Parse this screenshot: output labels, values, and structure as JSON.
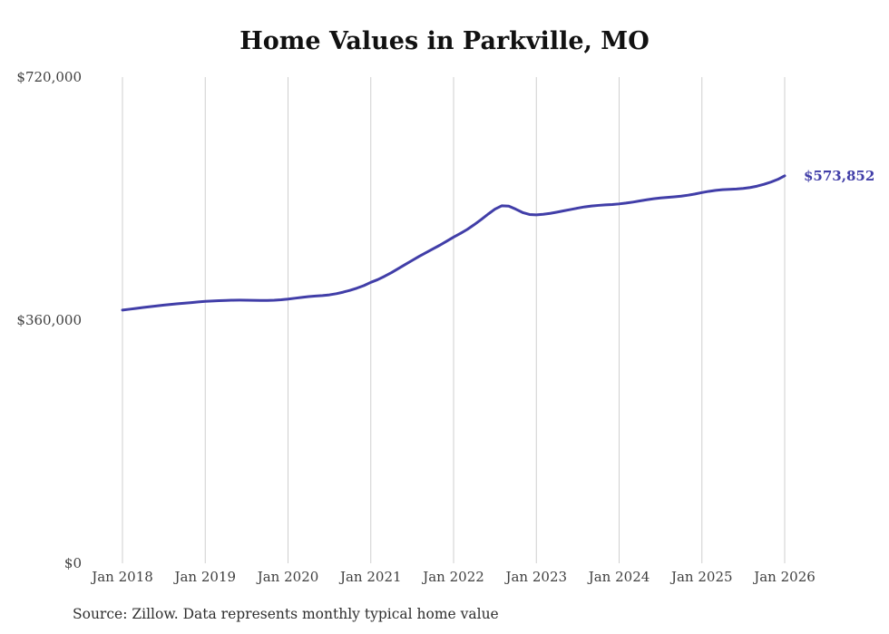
{
  "title": "Home Values in Parkville, MO",
  "source_note": "Source: Zillow. Data represents monthly typical home value",
  "colors": {
    "line": "#413ea8",
    "grid": "#cfcfcf",
    "axis_text": "#3f3f3f",
    "title_text": "#111111",
    "background": "#ffffff"
  },
  "chart_data": {
    "type": "line",
    "title": "Home Values in Parkville, MO",
    "xlabel": "",
    "ylabel": "",
    "frequency": "monthly",
    "x_start": "Jan 2018",
    "x_end": "Jan 2026",
    "ylim": [
      0,
      720000
    ],
    "grid": "vertical-only",
    "legend": "none",
    "y_tick_labels": [
      "$0",
      "$360,000",
      "$720,000"
    ],
    "x_tick_labels": [
      "Jan 2018",
      "Jan 2019",
      "Jan 2020",
      "Jan 2021",
      "Jan 2022",
      "Jan 2023",
      "Jan 2024",
      "Jan 2025",
      "Jan 2026"
    ],
    "end_label": "$573,852",
    "end_value": 573852,
    "values": [
      375000,
      376200,
      377500,
      378800,
      380000,
      381200,
      382300,
      383300,
      384300,
      385200,
      386100,
      387000,
      387800,
      388400,
      388900,
      389300,
      389600,
      389700,
      389600,
      389400,
      389200,
      389200,
      389500,
      390200,
      391200,
      392500,
      393800,
      394900,
      395700,
      396400,
      397500,
      399200,
      401500,
      404300,
      407500,
      411200,
      416000,
      420000,
      425000,
      430500,
      436500,
      442500,
      448500,
      454500,
      460000,
      465500,
      471000,
      477000,
      483000,
      488500,
      494500,
      501500,
      509000,
      517000,
      524500,
      529500,
      529000,
      524500,
      519500,
      516500,
      516000,
      516800,
      518200,
      520000,
      522000,
      524000,
      526000,
      527800,
      529100,
      530000,
      530700,
      531300,
      532200,
      533400,
      534900,
      536600,
      538300,
      539800,
      541000,
      541900,
      542700,
      543700,
      545100,
      546900,
      549000,
      550800,
      552200,
      553200,
      553800,
      554300,
      555100,
      556500,
      558500,
      561200,
      564500,
      568500,
      573852
    ]
  }
}
